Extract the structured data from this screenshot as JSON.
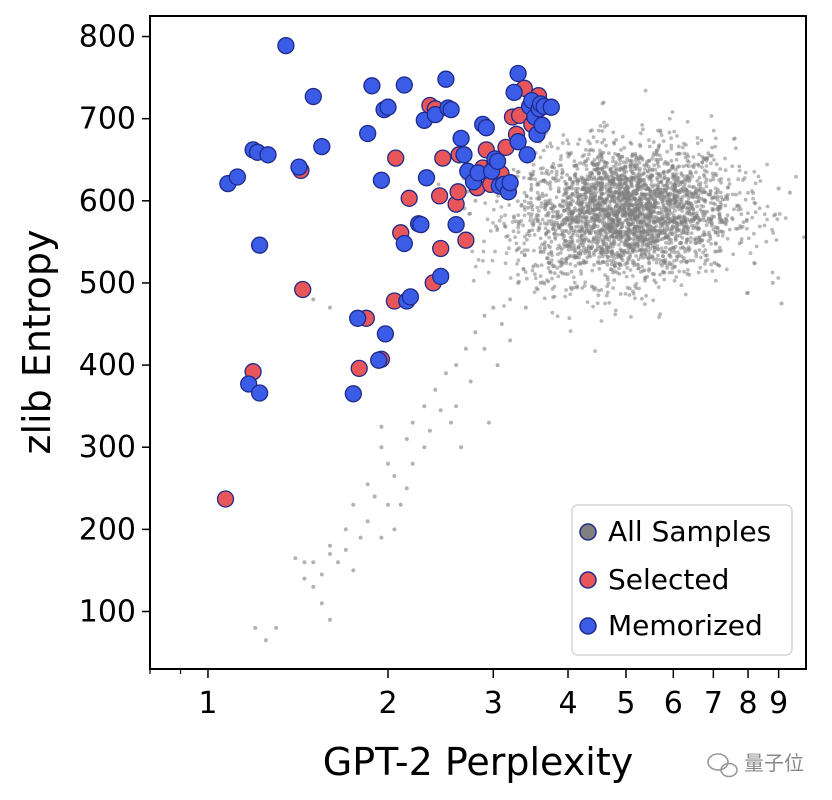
{
  "chart_data": {
    "type": "scatter",
    "xscale": "log",
    "xlabel": "GPT-2 Perplexity",
    "ylabel": "zlib Entropy",
    "xlim": [
      0.8,
      10
    ],
    "ylim": [
      30,
      825
    ],
    "xticks": [
      1,
      2,
      3,
      4,
      5,
      6,
      7,
      8,
      9
    ],
    "xtick_labels": [
      "1",
      "2",
      "3",
      "4",
      "5",
      "6",
      "7",
      "8",
      "9"
    ],
    "yticks": [
      100,
      200,
      300,
      400,
      500,
      600,
      700,
      800
    ],
    "ytick_labels": [
      "100",
      "200",
      "300",
      "400",
      "500",
      "600",
      "700",
      "800"
    ],
    "grid": false,
    "legend_position": "bottom-right",
    "series": [
      {
        "name": "All Samples",
        "color": "#808080",
        "cluster": {
          "x_center": 5.0,
          "y_center": 585,
          "x_spread": 0.12,
          "y_spread": 55,
          "count": 3000
        },
        "tail": [
          [
            1.2,
            80
          ],
          [
            1.25,
            65
          ],
          [
            1.3,
            80
          ],
          [
            1.4,
            165
          ],
          [
            1.45,
            160
          ],
          [
            1.5,
            130
          ],
          [
            1.55,
            145
          ],
          [
            1.6,
            180
          ],
          [
            1.7,
            200
          ],
          [
            1.75,
            230
          ],
          [
            1.8,
            190
          ],
          [
            1.85,
            255
          ],
          [
            1.9,
            240
          ],
          [
            1.95,
            300
          ],
          [
            2.0,
            280
          ],
          [
            2.05,
            265
          ],
          [
            2.1,
            230
          ],
          [
            2.15,
            310
          ],
          [
            2.2,
            330
          ],
          [
            2.3,
            350
          ],
          [
            2.35,
            320
          ],
          [
            2.4,
            370
          ],
          [
            2.5,
            390
          ],
          [
            2.6,
            400
          ],
          [
            2.7,
            420
          ],
          [
            2.8,
            440
          ],
          [
            2.9,
            460
          ],
          [
            3.0,
            470
          ],
          [
            3.1,
            450
          ],
          [
            3.2,
            480
          ],
          [
            3.3,
            500
          ],
          [
            3.5,
            520
          ],
          [
            3.7,
            530
          ],
          [
            1.95,
            325
          ],
          [
            2.45,
            345
          ],
          [
            2.2,
            280
          ],
          [
            1.7,
            175
          ],
          [
            2.6,
            350
          ],
          [
            2.9,
            420
          ],
          [
            3.2,
            430
          ],
          [
            3.4,
            470
          ],
          [
            2.0,
            230
          ],
          [
            2.3,
            300
          ],
          [
            1.6,
            170
          ],
          [
            2.75,
            380
          ],
          [
            3.05,
            400
          ],
          [
            1.85,
            210
          ],
          [
            2.15,
            250
          ],
          [
            1.5,
            160
          ],
          [
            1.45,
            140
          ],
          [
            3.6,
            500
          ],
          [
            2.55,
            330
          ],
          [
            2.05,
            200
          ],
          [
            1.95,
            190
          ],
          [
            1.75,
            150
          ],
          [
            1.65,
            160
          ],
          [
            2.65,
            300
          ],
          [
            3.8,
            560
          ],
          [
            2.95,
            330
          ],
          [
            1.55,
            110
          ],
          [
            1.6,
            90
          ],
          [
            2.0,
            440
          ],
          [
            1.5,
            480
          ],
          [
            1.45,
            490
          ],
          [
            1.6,
            470
          ],
          [
            9.0,
            615
          ],
          [
            9.4,
            610
          ],
          [
            9.1,
            475
          ],
          [
            8.8,
            500
          ],
          [
            2.4,
            500
          ],
          [
            2.8,
            600
          ]
        ],
        "points": []
      },
      {
        "name": "Selected",
        "color": "#e8565a",
        "points": [
          [
            1.07,
            237
          ],
          [
            1.19,
            392
          ],
          [
            1.44,
            492
          ],
          [
            1.43,
            637
          ],
          [
            1.84,
            457
          ],
          [
            1.79,
            396
          ],
          [
            1.95,
            407
          ],
          [
            2.05,
            478
          ],
          [
            2.1,
            561
          ],
          [
            2.06,
            652
          ],
          [
            2.17,
            603
          ],
          [
            2.35,
            716
          ],
          [
            2.38,
            500
          ],
          [
            2.45,
            542
          ],
          [
            2.47,
            652
          ],
          [
            2.6,
            596
          ],
          [
            2.62,
            611
          ],
          [
            2.63,
            656
          ],
          [
            2.7,
            552
          ],
          [
            2.82,
            616
          ],
          [
            2.88,
            640
          ],
          [
            2.97,
            620
          ],
          [
            3.02,
            646
          ],
          [
            3.09,
            633
          ],
          [
            3.15,
            665
          ],
          [
            3.23,
            702
          ],
          [
            3.32,
            704
          ],
          [
            3.38,
            737
          ],
          [
            3.48,
            693
          ],
          [
            3.57,
            728
          ],
          [
            2.92,
            662
          ],
          [
            2.77,
            631
          ],
          [
            3.28,
            681
          ],
          [
            2.44,
            606
          ],
          [
            2.4,
            712
          ]
        ]
      },
      {
        "name": "Memorized",
        "color": "#3b5ce6",
        "points": [
          [
            1.08,
            621
          ],
          [
            1.12,
            629
          ],
          [
            1.17,
            377
          ],
          [
            1.19,
            662
          ],
          [
            1.21,
            659
          ],
          [
            1.22,
            546
          ],
          [
            1.22,
            366
          ],
          [
            1.26,
            656
          ],
          [
            1.35,
            789
          ],
          [
            1.42,
            641
          ],
          [
            1.5,
            727
          ],
          [
            1.55,
            666
          ],
          [
            1.75,
            365
          ],
          [
            1.78,
            457
          ],
          [
            1.85,
            682
          ],
          [
            1.88,
            740
          ],
          [
            1.93,
            406
          ],
          [
            1.95,
            625
          ],
          [
            1.97,
            711
          ],
          [
            1.98,
            438
          ],
          [
            2.0,
            714
          ],
          [
            2.13,
            741
          ],
          [
            2.13,
            548
          ],
          [
            2.15,
            478
          ],
          [
            2.18,
            483
          ],
          [
            2.25,
            572
          ],
          [
            2.27,
            571
          ],
          [
            2.3,
            698
          ],
          [
            2.32,
            628
          ],
          [
            2.4,
            705
          ],
          [
            2.45,
            508
          ],
          [
            2.5,
            748
          ],
          [
            2.52,
            713
          ],
          [
            2.55,
            711
          ],
          [
            2.6,
            571
          ],
          [
            2.65,
            676
          ],
          [
            2.68,
            656
          ],
          [
            2.72,
            636
          ],
          [
            2.78,
            623
          ],
          [
            2.83,
            634
          ],
          [
            2.88,
            693
          ],
          [
            2.92,
            689
          ],
          [
            2.98,
            636
          ],
          [
            3.02,
            651
          ],
          [
            3.05,
            648
          ],
          [
            3.07,
            618
          ],
          [
            3.12,
            620
          ],
          [
            3.18,
            611
          ],
          [
            3.2,
            622
          ],
          [
            3.25,
            732
          ],
          [
            3.3,
            755
          ],
          [
            3.3,
            672
          ],
          [
            3.42,
            656
          ],
          [
            3.45,
            715
          ],
          [
            3.48,
            722
          ],
          [
            3.52,
            702
          ],
          [
            3.55,
            681
          ],
          [
            3.58,
            712
          ],
          [
            3.6,
            718
          ],
          [
            3.62,
            692
          ],
          [
            3.65,
            715
          ],
          [
            3.75,
            714
          ]
        ]
      }
    ]
  },
  "watermark": {
    "brand": "量子位"
  }
}
